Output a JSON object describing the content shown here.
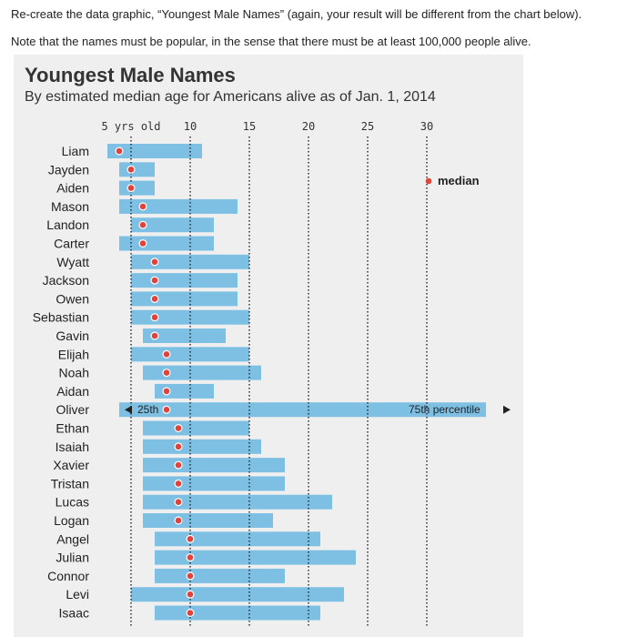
{
  "instructions": {
    "line1": "Re-create the data graphic, “Youngest Male Names” (again, your result will be different from the chart below).",
    "line2": "Note that the names must be popular, in the sense that there must be at least 100,000 people alive."
  },
  "chart_data": {
    "type": "bar",
    "title": "Youngest Male Names",
    "subtitle": "By estimated median age for Americans alive as of Jan. 1, 2014",
    "x_ticks": [
      {
        "value": 5,
        "label": "5 yrs old"
      },
      {
        "value": 10,
        "label": "10"
      },
      {
        "value": 15,
        "label": "15"
      },
      {
        "value": 20,
        "label": "20"
      },
      {
        "value": 25,
        "label": "25"
      },
      {
        "value": 30,
        "label": "30"
      }
    ],
    "xlim": [
      3,
      35
    ],
    "grid": true,
    "legend": {
      "label": "median",
      "placement": "top-right"
    },
    "bar_color": "#7ec0e3",
    "median_color": "#e0433b",
    "annotations": {
      "p25_label": "25th",
      "p75_label": "75th percentile"
    },
    "rows": [
      {
        "name": "Liam",
        "p25": 3.0,
        "median": 4.0,
        "p75": 11.0
      },
      {
        "name": "Jayden",
        "p25": 4.0,
        "median": 5.0,
        "p75": 7.0
      },
      {
        "name": "Aiden",
        "p25": 4.0,
        "median": 5.0,
        "p75": 7.0
      },
      {
        "name": "Mason",
        "p25": 4.0,
        "median": 6.0,
        "p75": 14.0
      },
      {
        "name": "Landon",
        "p25": 5.0,
        "median": 6.0,
        "p75": 12.0
      },
      {
        "name": "Carter",
        "p25": 4.0,
        "median": 6.0,
        "p75": 12.0
      },
      {
        "name": "Wyatt",
        "p25": 5.0,
        "median": 7.0,
        "p75": 15.0
      },
      {
        "name": "Jackson",
        "p25": 5.0,
        "median": 7.0,
        "p75": 14.0
      },
      {
        "name": "Owen",
        "p25": 5.0,
        "median": 7.0,
        "p75": 14.0
      },
      {
        "name": "Sebastian",
        "p25": 5.0,
        "median": 7.0,
        "p75": 15.0
      },
      {
        "name": "Gavin",
        "p25": 6.0,
        "median": 7.0,
        "p75": 13.0
      },
      {
        "name": "Elijah",
        "p25": 5.0,
        "median": 8.0,
        "p75": 15.0
      },
      {
        "name": "Noah",
        "p25": 6.0,
        "median": 8.0,
        "p75": 16.0
      },
      {
        "name": "Aidan",
        "p25": 7.0,
        "median": 8.0,
        "p75": 12.0
      },
      {
        "name": "Oliver",
        "p25": 4.0,
        "median": 8.0,
        "p75": 35.0
      },
      {
        "name": "Ethan",
        "p25": 6.0,
        "median": 9.0,
        "p75": 15.0
      },
      {
        "name": "Isaiah",
        "p25": 6.0,
        "median": 9.0,
        "p75": 16.0
      },
      {
        "name": "Xavier",
        "p25": 6.0,
        "median": 9.0,
        "p75": 18.0
      },
      {
        "name": "Tristan",
        "p25": 6.0,
        "median": 9.0,
        "p75": 18.0
      },
      {
        "name": "Lucas",
        "p25": 6.0,
        "median": 9.0,
        "p75": 22.0
      },
      {
        "name": "Logan",
        "p25": 6.0,
        "median": 9.0,
        "p75": 17.0
      },
      {
        "name": "Angel",
        "p25": 7.0,
        "median": 10.0,
        "p75": 21.0
      },
      {
        "name": "Julian",
        "p25": 7.0,
        "median": 10.0,
        "p75": 24.0
      },
      {
        "name": "Connor",
        "p25": 7.0,
        "median": 10.0,
        "p75": 18.0
      },
      {
        "name": "Levi",
        "p25": 5.0,
        "median": 10.0,
        "p75": 23.0
      },
      {
        "name": "Isaac",
        "p25": 7.0,
        "median": 10.0,
        "p75": 21.0
      }
    ]
  }
}
